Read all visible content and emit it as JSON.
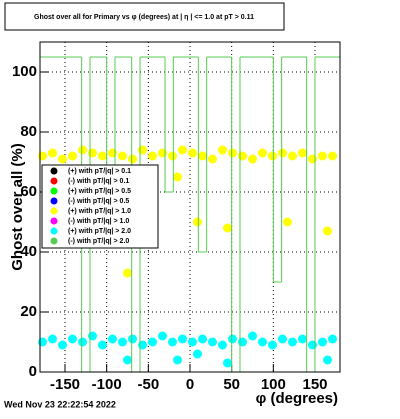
{
  "chart_data": {
    "type": "scatter",
    "title": "Ghost over all for Primary vs φ (degrees) at | η | <= 1.0 at pT > 0.11",
    "x_label": "φ (degrees)",
    "y_label": "Ghost over all (%)",
    "timestamp": "Wed Nov 23 22:22:54 2022",
    "xlim": [
      -180,
      180
    ],
    "ylim": [
      0,
      110
    ],
    "xticks": [
      -150,
      -100,
      -50,
      0,
      50,
      100,
      150
    ],
    "yticks": [
      0,
      20,
      40,
      60,
      80,
      100
    ],
    "grid": true,
    "legend": "left",
    "series": [
      {
        "name": "(+) with pT/|q| > 0.1",
        "color": "#000000",
        "x": [],
        "values": []
      },
      {
        "name": "(-) with pT/|q| > 0.1",
        "color": "#ff0000",
        "x": [],
        "values": []
      },
      {
        "name": "(+) with pT/|q| > 0.5",
        "color": "#00ff00",
        "x": [],
        "values": []
      },
      {
        "name": "(-) with pT/|q| > 0.5",
        "color": "#0000ff",
        "x": [],
        "values": []
      },
      {
        "name": "(+) with pT/|q| > 1.0",
        "color": "#ffff00",
        "x": [
          -177,
          -165,
          -153,
          -141,
          -129,
          -117,
          -105,
          -93,
          -81,
          -75,
          -69,
          -57,
          -45,
          -33,
          -21,
          -15,
          -9,
          3,
          9,
          15,
          27,
          39,
          45,
          51,
          63,
          75,
          87,
          99,
          111,
          117,
          123,
          135,
          147,
          159,
          165,
          171
        ],
        "values": [
          72,
          73,
          71,
          72,
          74,
          73,
          72,
          73,
          72,
          33,
          71,
          74,
          72,
          73,
          72,
          65,
          74,
          73,
          50,
          72,
          71,
          74,
          48,
          73,
          72,
          71,
          73,
          72,
          73,
          50,
          72,
          73,
          71,
          72,
          47,
          72
        ]
      },
      {
        "name": "(-) with pT/|q| > 1.0",
        "color": "#ff00ff",
        "x": [],
        "values": []
      },
      {
        "name": "(+) with pT/|q| > 2.0",
        "color": "#00ffff",
        "x": [
          -177,
          -165,
          -153,
          -141,
          -129,
          -117,
          -105,
          -93,
          -81,
          -75,
          -69,
          -57,
          -45,
          -33,
          -21,
          -15,
          -9,
          3,
          9,
          15,
          27,
          39,
          45,
          51,
          63,
          75,
          87,
          99,
          111,
          123,
          135,
          147,
          159,
          165,
          171
        ],
        "values": [
          10,
          11,
          9,
          11,
          10,
          12,
          9,
          11,
          10,
          4,
          11,
          9,
          10,
          12,
          10,
          4,
          11,
          10,
          6,
          11,
          10,
          9,
          3,
          11,
          10,
          12,
          10,
          9,
          11,
          10,
          11,
          9,
          10,
          4,
          11
        ]
      },
      {
        "name": "(-) with pT/|q| > 2.0",
        "color": "#55cc55",
        "bins": [
          -180,
          -170,
          -160,
          -150,
          -140,
          -130,
          -120,
          -110,
          -100,
          -90,
          -80,
          -70,
          -60,
          -50,
          -40,
          -30,
          -20,
          -10,
          0,
          10,
          20,
          30,
          40,
          50,
          60,
          70,
          80,
          90,
          100,
          110,
          120,
          130,
          140,
          150,
          160,
          170,
          180
        ],
        "values": [
          105,
          105,
          105,
          105,
          105,
          0,
          105,
          105,
          60,
          105,
          105,
          0,
          105,
          105,
          105,
          60,
          105,
          105,
          105,
          40,
          105,
          105,
          105,
          0,
          105,
          105,
          105,
          105,
          30,
          105,
          105,
          105,
          0,
          105,
          105,
          105
        ]
      }
    ]
  }
}
